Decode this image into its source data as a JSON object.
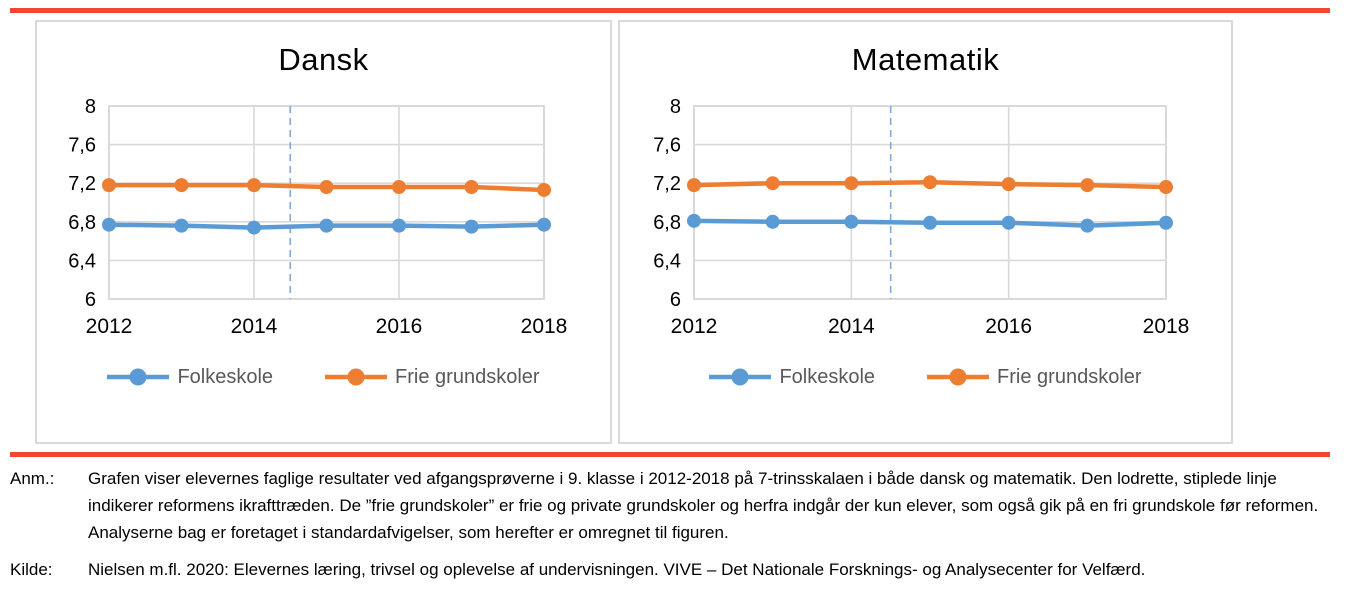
{
  "figure": {
    "rule_color": "#f04634",
    "panel_border_color": "#d9d9d9"
  },
  "chart_data": [
    {
      "type": "line",
      "title": "Dansk",
      "x": [
        2012,
        2013,
        2014,
        2015,
        2016,
        2017,
        2018
      ],
      "series": [
        {
          "name": "Folkeskole",
          "color": "#5b9bd5",
          "values": [
            6.77,
            6.76,
            6.74,
            6.76,
            6.76,
            6.75,
            6.77
          ]
        },
        {
          "name": "Frie grundskoler",
          "color": "#ed7d31",
          "values": [
            7.18,
            7.18,
            7.18,
            7.16,
            7.16,
            7.16,
            7.13
          ]
        }
      ],
      "xlim": [
        2012,
        2018
      ],
      "ylim": [
        6,
        8
      ],
      "yticks": [
        6,
        6.4,
        6.8,
        7.2,
        7.6,
        8
      ],
      "ytick_labels": [
        "6",
        "6,4",
        "6,8",
        "7,2",
        "7,6",
        "8"
      ],
      "xticks": [
        2012,
        2014,
        2016,
        2018
      ],
      "xtick_labels": [
        "2012",
        "2014",
        "2016",
        "2018"
      ],
      "x_gridlines": [
        2014,
        2016
      ],
      "grid": true,
      "grid_color": "#d9d9d9",
      "reform_line_x": 2014.5,
      "reform_line_style": "dashed",
      "reform_line_color": "#7fa9dc",
      "legend_position": "bottom",
      "legend_entries": [
        "Folkeskole",
        "Frie grundskoler"
      ]
    },
    {
      "type": "line",
      "title": "Matematik",
      "x": [
        2012,
        2013,
        2014,
        2015,
        2016,
        2017,
        2018
      ],
      "series": [
        {
          "name": "Folkeskole",
          "color": "#5b9bd5",
          "values": [
            6.81,
            6.8,
            6.8,
            6.79,
            6.79,
            6.76,
            6.79
          ]
        },
        {
          "name": "Frie grundskoler",
          "color": "#ed7d31",
          "values": [
            7.18,
            7.2,
            7.2,
            7.21,
            7.19,
            7.18,
            7.16
          ]
        }
      ],
      "xlim": [
        2012,
        2018
      ],
      "ylim": [
        6,
        8
      ],
      "yticks": [
        6,
        6.4,
        6.8,
        7.2,
        7.6,
        8
      ],
      "ytick_labels": [
        "6",
        "6,4",
        "6,8",
        "7,2",
        "7,6",
        "8"
      ],
      "xticks": [
        2012,
        2014,
        2016,
        2018
      ],
      "xtick_labels": [
        "2012",
        "2014",
        "2016",
        "2018"
      ],
      "x_gridlines": [
        2014,
        2016
      ],
      "grid": true,
      "grid_color": "#d9d9d9",
      "reform_line_x": 2014.5,
      "reform_line_style": "dashed",
      "reform_line_color": "#7fa9dc",
      "legend_position": "bottom",
      "legend_entries": [
        "Folkeskole",
        "Frie grundskoler"
      ]
    }
  ],
  "legend_text_color": "#595959",
  "notes": {
    "anm_label": "Anm.:",
    "anm_text": "Grafen viser elevernes faglige resultater ved afgangsprøverne i 9. klasse i 2012-2018 på 7-trinsskalaen i både dansk og matematik. Den lodrette, stiplede linje indikerer reformens ikrafttræden. De ”frie grundskoler” er frie og private grundskoler og herfra indgår der kun elever, som også gik på en fri grundskole før reformen. Analyserne bag er foretaget i standardafvigelser, som herefter er omregnet til figuren.",
    "kilde_label": "Kilde:",
    "kilde_text": "Nielsen m.fl. 2020: Elevernes læring, trivsel og oplevelse af undervisningen. VIVE – Det Nationale Forsknings- og Analysecenter for Velfærd."
  }
}
